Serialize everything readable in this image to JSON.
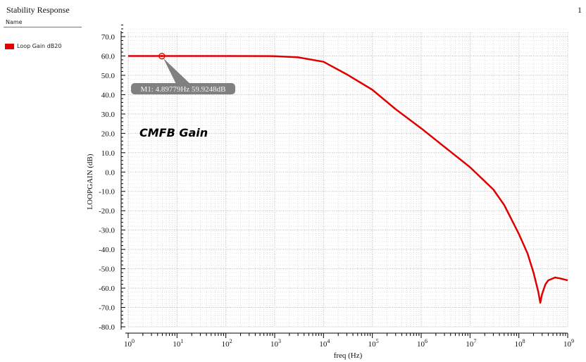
{
  "window": {
    "title": "Stability Response",
    "page_number": "1"
  },
  "legend_panel": {
    "header": "Name",
    "items": [
      {
        "label": "Loop Gain dB20",
        "color": "#e00000"
      }
    ]
  },
  "chart_data": {
    "type": "line",
    "xlabel": "freq (Hz)",
    "ylabel": "LOOPGAIN (dB)",
    "x_scale": "log",
    "xlim": [
      1,
      1000000000
    ],
    "ylim": [
      -80,
      70
    ],
    "grid": true,
    "x_ticks": [
      {
        "exp": "0"
      },
      {
        "exp": "1"
      },
      {
        "exp": "2"
      },
      {
        "exp": "3"
      },
      {
        "exp": "4"
      },
      {
        "exp": "5"
      },
      {
        "exp": "6"
      },
      {
        "exp": "7"
      },
      {
        "exp": "8"
      },
      {
        "exp": "9"
      }
    ],
    "y_ticks": [
      "70.0",
      "60.0",
      "50.0",
      "40.0",
      "30.0",
      "20.0",
      "10.0",
      "0.0",
      "-10.0",
      "-20.0",
      "-30.0",
      "-40.0",
      "-50.0",
      "-60.0",
      "-70.0",
      "-80.0"
    ],
    "annotation": "CMFB Gain",
    "marker": {
      "label": "M1: 4.89779Hz 59.9248dB",
      "x": 4.89779,
      "y": 59.9248
    },
    "series": [
      {
        "name": "Loop Gain dB20",
        "color": "#e00000",
        "x": [
          1,
          10,
          100,
          1000,
          3000,
          10000,
          30000,
          100000,
          300000,
          1000000,
          3000000,
          10000000,
          30000000,
          50000000,
          100000000,
          150000000,
          200000000,
          250000000,
          275000000,
          300000000,
          350000000,
          400000000,
          550000000,
          700000000,
          1000000000
        ],
        "y": [
          60,
          60,
          60,
          59.9,
          59.3,
          57,
          50.5,
          42.5,
          32.5,
          22.6,
          13,
          2.5,
          -9,
          -17,
          -32,
          -42,
          -52,
          -62,
          -67.6,
          -63,
          -58,
          -56,
          -54.5,
          -55,
          -56
        ]
      }
    ]
  }
}
